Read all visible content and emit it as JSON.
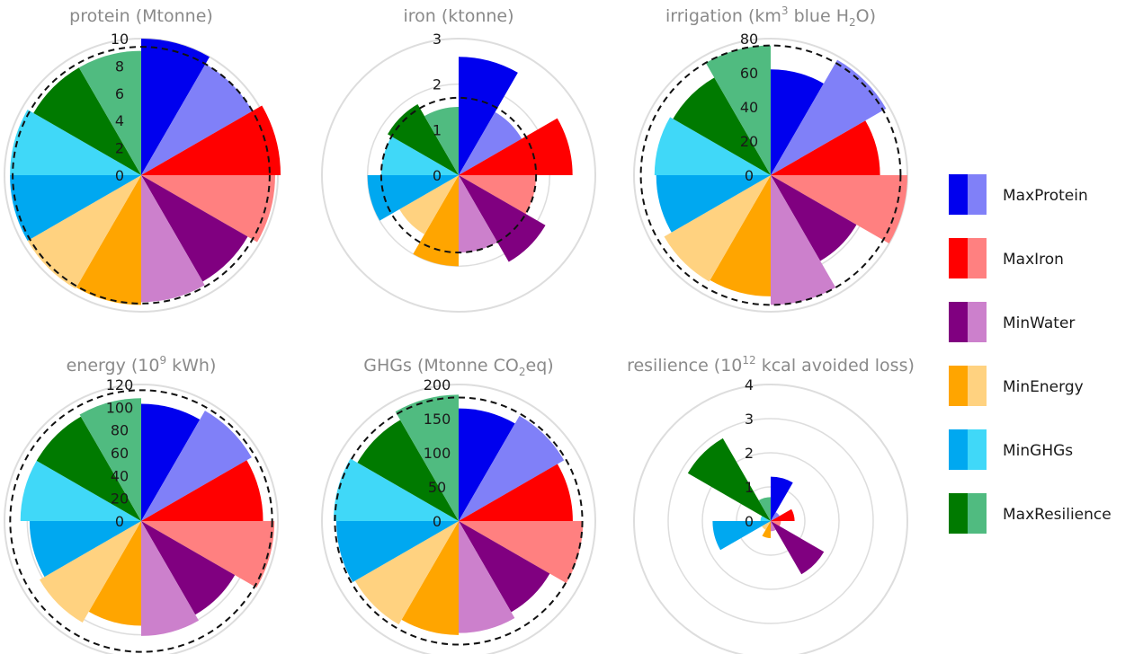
{
  "chart_data": {
    "type": "polar-bar",
    "series_names": [
      "MaxProtein",
      "MaxIron",
      "MinWater",
      "MinEnergy",
      "MinGHGs",
      "MaxResilience"
    ],
    "legend": {
      "items": [
        {
          "label": "MaxProtein",
          "dark": "#0000ee",
          "light": "#8080f8"
        },
        {
          "label": "MaxIron",
          "dark": "#ff0000",
          "light": "#ff8080"
        },
        {
          "label": "MinWater",
          "dark": "#800080",
          "light": "#cc80cc"
        },
        {
          "label": "MinEnergy",
          "dark": "#ffa500",
          "light": "#ffd280"
        },
        {
          "label": "MinGHGs",
          "dark": "#00a8f0",
          "light": "#40d8f8"
        },
        {
          "label": "MaxResilience",
          "dark": "#007a00",
          "light": "#50bb80"
        }
      ],
      "placement": "right"
    },
    "panels": [
      {
        "title": "protein (Mtonne)",
        "ticks": [
          "0",
          "2",
          "4",
          "6",
          "8",
          "10"
        ],
        "rmax": 10,
        "reference_dashed_circle": 9.4,
        "values": [
          {
            "series": "MaxProtein",
            "dark": 10.0,
            "light": 9.4
          },
          {
            "series": "MaxIron",
            "dark": 10.2,
            "light": 9.8
          },
          {
            "series": "MinWater",
            "dark": 9.0,
            "light": 9.3
          },
          {
            "series": "MinEnergy",
            "dark": 9.5,
            "light": 9.6
          },
          {
            "series": "MinGHGs",
            "dark": 9.6,
            "light": 9.6
          },
          {
            "series": "MaxResilience",
            "dark": 9.1,
            "light": 9.1
          }
        ]
      },
      {
        "title": "iron (ktonne)",
        "ticks": [
          "0",
          "1",
          "2",
          "3"
        ],
        "rmax": 3,
        "reference_dashed_circle": 1.7,
        "values": [
          {
            "series": "MaxProtein",
            "dark": 2.6,
            "light": 1.6
          },
          {
            "series": "MaxIron",
            "dark": 2.5,
            "light": 1.7
          },
          {
            "series": "MinWater",
            "dark": 2.2,
            "light": 1.7
          },
          {
            "series": "MinEnergy",
            "dark": 2.0,
            "light": 1.5
          },
          {
            "series": "MinGHGs",
            "dark": 2.0,
            "light": 1.7
          },
          {
            "series": "MaxResilience",
            "dark": 1.8,
            "light": 1.5
          }
        ]
      },
      {
        "title": "irrigation (km",
        "title_sup": "3",
        "title_after_sup": " blue H",
        "title_sub": "2",
        "title_tail": "O)",
        "ticks": [
          "0",
          "20",
          "40",
          "60",
          "80"
        ],
        "rmax": 80,
        "reference_dashed_circle": 76,
        "values": [
          {
            "series": "MaxProtein",
            "dark": 62,
            "light": 78
          },
          {
            "series": "MaxIron",
            "dark": 64,
            "light": 80
          },
          {
            "series": "MinWater",
            "dark": 58,
            "light": 76
          },
          {
            "series": "MinEnergy",
            "dark": 71,
            "light": 72
          },
          {
            "series": "MinGHGs",
            "dark": 67,
            "light": 68
          },
          {
            "series": "MaxResilience",
            "dark": 66,
            "light": 76
          }
        ]
      },
      {
        "title": "energy (10",
        "title_sup": "9",
        "title_tail": " kWh)",
        "ticks": [
          "0",
          "20",
          "40",
          "60",
          "80",
          "100",
          "120"
        ],
        "rmax": 120,
        "reference_dashed_circle": 115,
        "values": [
          {
            "series": "MaxProtein",
            "dark": 103,
            "light": 112
          },
          {
            "series": "MaxIron",
            "dark": 107,
            "light": 117
          },
          {
            "series": "MinWater",
            "dark": 95,
            "light": 101
          },
          {
            "series": "MinEnergy",
            "dark": 92,
            "light": 103
          },
          {
            "series": "MinGHGs",
            "dark": 98,
            "light": 106
          },
          {
            "series": "MaxResilience",
            "dark": 106,
            "light": 108
          }
        ]
      },
      {
        "title": "GHGs (Mtonne CO",
        "title_sub": "2",
        "title_tail": "eq)",
        "ticks": [
          "0",
          "50",
          "100",
          "150",
          "200"
        ],
        "rmax": 200,
        "reference_dashed_circle": 181,
        "values": [
          {
            "series": "MaxProtein",
            "dark": 165,
            "light": 178
          },
          {
            "series": "MaxIron",
            "dark": 167,
            "light": 182
          },
          {
            "series": "MinWater",
            "dark": 154,
            "light": 164
          },
          {
            "series": "MinEnergy",
            "dark": 167,
            "light": 175
          },
          {
            "series": "MinGHGs",
            "dark": 179,
            "light": 183
          },
          {
            "series": "MaxResilience",
            "dark": 171,
            "light": 185
          }
        ]
      },
      {
        "title": "resilience (10",
        "title_sup": "12",
        "title_tail": " kcal avoided loss)",
        "ticks": [
          "0",
          "1",
          "2",
          "3",
          "4"
        ],
        "rmax": 4,
        "reference_dashed_circle": null,
        "values": [
          {
            "series": "MaxProtein",
            "dark": 1.3,
            "light": 0.3
          },
          {
            "series": "MaxIron",
            "dark": 0.7,
            "light": 0.3
          },
          {
            "series": "MinWater",
            "dark": 1.8,
            "light": 0.3
          },
          {
            "series": "MinEnergy",
            "dark": 0.5,
            "light": 0.3
          },
          {
            "series": "MinGHGs",
            "dark": 1.7,
            "light": 0.3
          },
          {
            "series": "MaxResilience",
            "dark": 2.8,
            "light": 0.7
          }
        ]
      }
    ]
  }
}
